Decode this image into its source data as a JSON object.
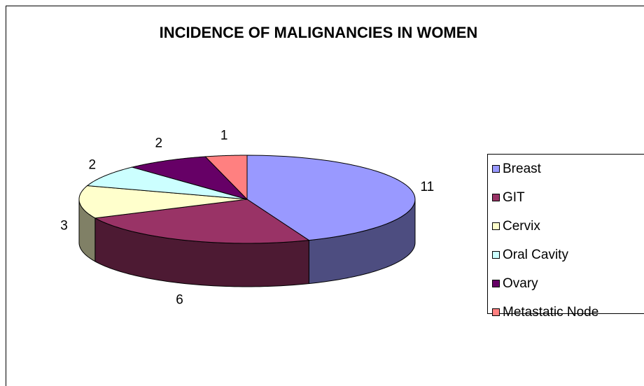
{
  "chart_data": {
    "type": "pie3d",
    "title": "INCIDENCE OF MALIGNANCIES IN WOMEN",
    "categories": [
      "Breast",
      "GIT",
      "Cervix",
      "Oral Cavity",
      "Ovary",
      "Metastatic Node"
    ],
    "values": [
      11,
      6,
      3,
      2,
      2,
      1
    ],
    "colors": [
      "#9999FF",
      "#993366",
      "#FFFFCC",
      "#CCFFFF",
      "#660066",
      "#FF8080"
    ],
    "legend": "right"
  }
}
